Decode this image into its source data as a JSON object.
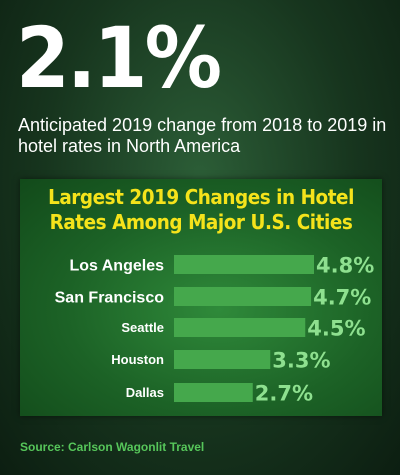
{
  "headline": {
    "value": "2.1%",
    "description": "Anticipated 2019 change from 2018 to 2019 in hotel rates in North America"
  },
  "source": "Source: Carlson Wagonlit Travel",
  "colors": {
    "bar": "#45a84c",
    "value_text": "#8ee08f",
    "title": "#f5e31b",
    "source": "#56c65a"
  },
  "chart_data": {
    "type": "bar",
    "orientation": "horizontal",
    "title": "Largest 2019 Changes in Hotel Rates Among Major U.S. Cities",
    "categories": [
      "Los Angeles",
      "San Francisco",
      "Seattle",
      "Houston",
      "Dallas"
    ],
    "values": [
      4.8,
      4.7,
      4.5,
      3.3,
      2.7
    ],
    "value_labels": [
      "4.8%",
      "4.7%",
      "4.5%",
      "3.3%",
      "2.7%"
    ],
    "xlim": [
      0,
      4.8
    ],
    "xlabel": "",
    "ylabel": "",
    "grid": false,
    "legend": "none"
  }
}
